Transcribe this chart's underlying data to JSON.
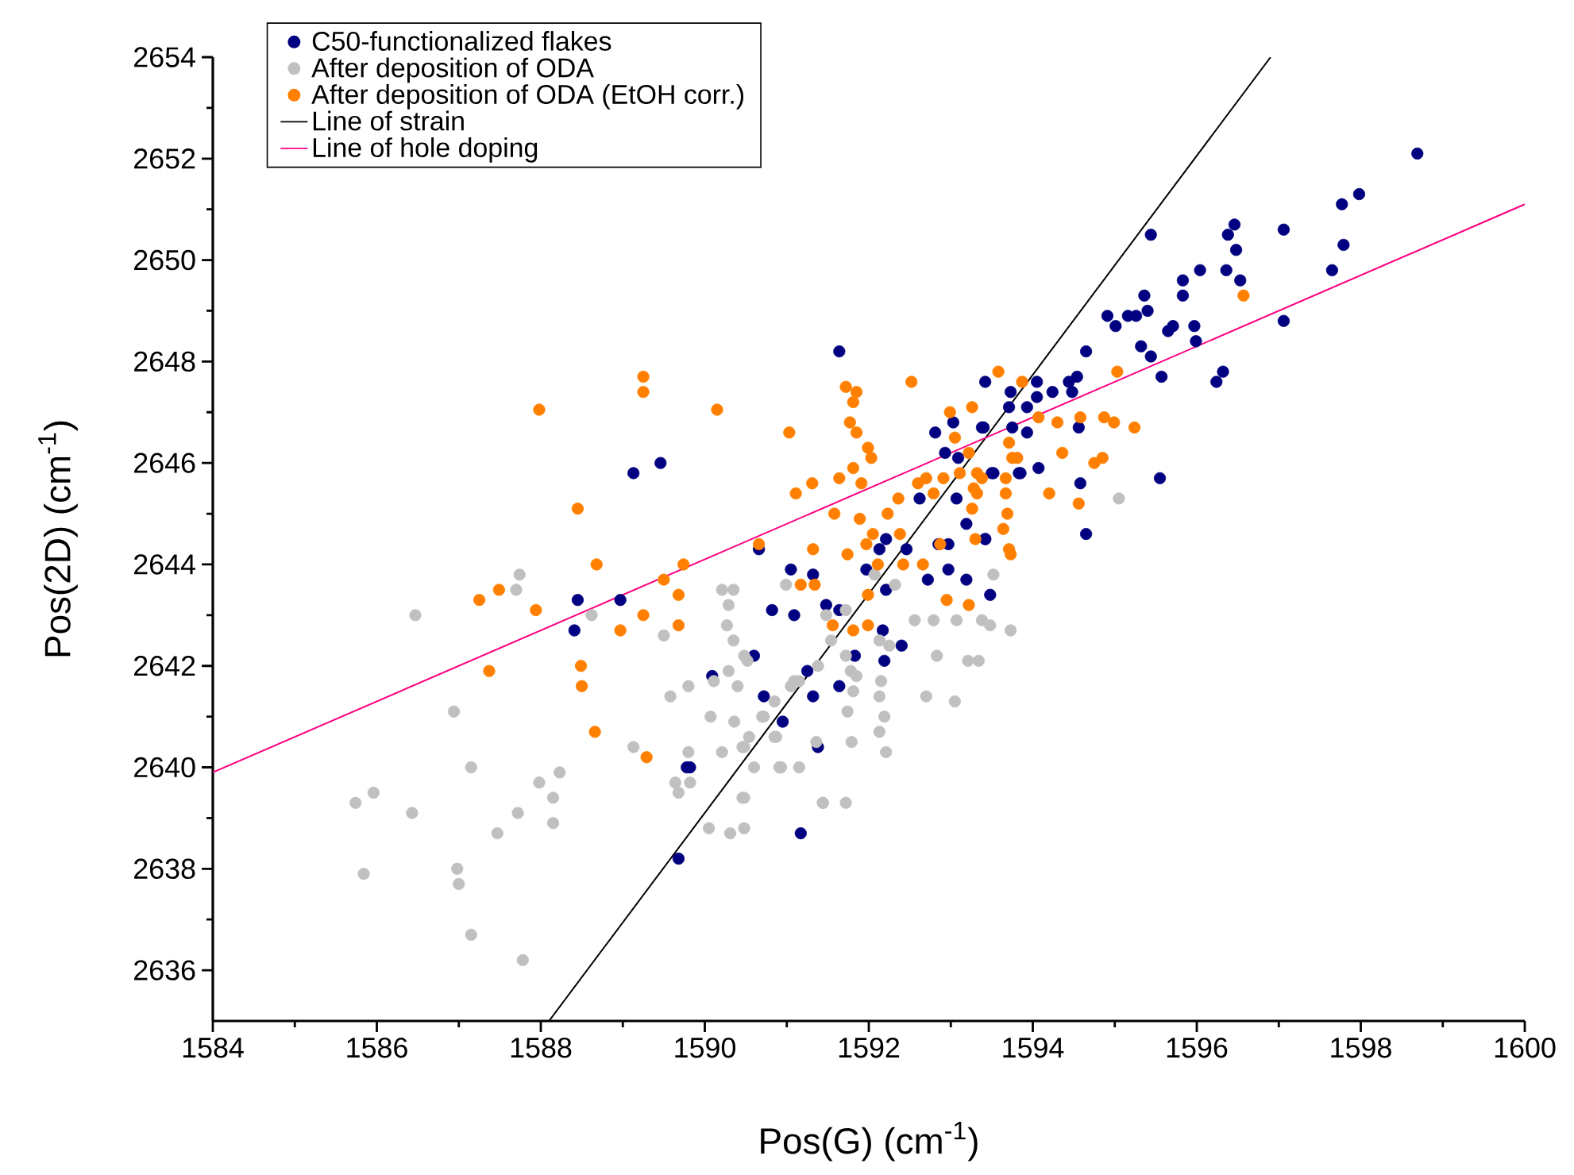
{
  "chart_data": {
    "type": "scatter",
    "xlabel": "Pos(G) (cm$^{-1}$)",
    "ylabel": "Pos(2D) (cm$^{-1}$)",
    "xlim": [
      1584,
      1600
    ],
    "ylim": [
      2635,
      2654
    ],
    "xticks": [
      1584,
      1586,
      1588,
      1590,
      1592,
      1594,
      1596,
      1598,
      1600
    ],
    "yticks": [
      2636,
      2638,
      2640,
      2642,
      2644,
      2646,
      2648,
      2650,
      2652,
      2654
    ],
    "legend": "top left",
    "marker": "circle",
    "series": [
      {
        "name": "C50-functionalized flakes",
        "color": "#000080",
        "x": [
          1598.69,
          1597.98,
          1597.77,
          1597.79,
          1597.65,
          1597.06,
          1597.06,
          1596.46,
          1596.38,
          1596.48,
          1596.36,
          1596.53,
          1596.32,
          1596.24,
          1596.04,
          1595.83,
          1595.83,
          1595.44,
          1595.36,
          1595.4,
          1595.26,
          1595.16,
          1594.91,
          1595.01,
          1595.71,
          1595.65,
          1595.97,
          1595.99,
          1595.32,
          1595.44,
          1595.57,
          1594.65,
          1594.54,
          1594.44,
          1594.48,
          1594.24,
          1594.05,
          1594.05,
          1593.73,
          1593.42,
          1593.93,
          1593.71,
          1594.56,
          1593.93,
          1593.75,
          1593.4,
          1594.07,
          1593.83,
          1593.52,
          1594.58,
          1595.55,
          1594.65,
          1593.42,
          1592.81,
          1593.03,
          1593.38,
          1592.93,
          1593.09,
          1593.5,
          1593.85,
          1592.62,
          1593.07,
          1593.19,
          1593.42,
          1592.21,
          1592.13,
          1592.46,
          1592.85,
          1592.97,
          1591.97,
          1592.97,
          1592.72,
          1593.19,
          1593.48,
          1592.21,
          1591.05,
          1591.32,
          1590.82,
          1591.09,
          1591.48,
          1591.64,
          1592.17,
          1592.4,
          1591.83,
          1592.19,
          1590.6,
          1590.09,
          1591.25,
          1591.64,
          1590.72,
          1591.32,
          1590.95,
          1591.38,
          1589.82,
          1591.64,
          1589.13,
          1589.46,
          1588.45,
          1588.97,
          1588.41,
          1590.66,
          1589.78,
          1589.68,
          1591.17
        ],
        "values": [
          2652.1,
          2651.3,
          2651.1,
          2650.3,
          2649.8,
          2650.6,
          2648.8,
          2650.7,
          2650.5,
          2650.2,
          2649.8,
          2649.6,
          2647.8,
          2647.6,
          2649.8,
          2649.6,
          2649.3,
          2650.5,
          2649.3,
          2649.0,
          2648.9,
          2648.9,
          2648.9,
          2648.7,
          2648.7,
          2648.6,
          2648.7,
          2648.4,
          2648.3,
          2648.1,
          2647.7,
          2648.2,
          2647.7,
          2647.6,
          2647.4,
          2647.4,
          2647.6,
          2647.3,
          2647.4,
          2647.6,
          2647.1,
          2647.1,
          2646.7,
          2646.6,
          2646.7,
          2646.7,
          2645.9,
          2645.8,
          2645.8,
          2645.6,
          2645.7,
          2644.6,
          2644.5,
          2646.6,
          2646.8,
          2646.7,
          2646.2,
          2646.1,
          2645.8,
          2645.8,
          2645.3,
          2645.3,
          2644.8,
          2644.5,
          2644.5,
          2644.3,
          2644.3,
          2644.4,
          2644.4,
          2643.9,
          2643.9,
          2643.7,
          2643.7,
          2643.4,
          2643.5,
          2643.9,
          2643.8,
          2643.1,
          2643.0,
          2643.2,
          2643.1,
          2642.7,
          2642.4,
          2642.2,
          2642.1,
          2642.2,
          2641.8,
          2641.9,
          2641.6,
          2641.4,
          2641.4,
          2640.9,
          2640.4,
          2640.0,
          2648.2,
          2645.8,
          2646.0,
          2643.3,
          2643.3,
          2642.7,
          2644.3,
          2640.0,
          2638.2,
          2638.7
        ]
      },
      {
        "name": "After deposition of ODA",
        "color": "#c0c0c0",
        "x": [
          1586.47,
          1587.74,
          1587.7,
          1588.62,
          1589.5,
          1590.21,
          1590.35,
          1590.29,
          1590.27,
          1590.35,
          1590.48,
          1590.52,
          1590.99,
          1590.29,
          1590.11,
          1590.4,
          1589.8,
          1589.58,
          1590.07,
          1590.36,
          1590.7,
          1590.54,
          1590.85,
          1590.87,
          1591.05,
          1591.15,
          1589.13,
          1589.8,
          1590.21,
          1590.48,
          1590.6,
          1590.91,
          1591.15,
          1589.64,
          1589.68,
          1589.82,
          1590.48,
          1591.44,
          1590.05,
          1590.31,
          1590.48,
          1587.15,
          1588.23,
          1587.98,
          1588.15,
          1588.15,
          1587.72,
          1587.47,
          1586.94,
          1585.96,
          1585.74,
          1586.43,
          1585.84,
          1586.98,
          1587.0,
          1587.15,
          1587.78,
          1591.72,
          1591.54,
          1591.48,
          1592.07,
          1592.32,
          1592.56,
          1592.79,
          1593.07,
          1593.38,
          1593.48,
          1593.73,
          1593.52,
          1595.05,
          1592.13,
          1592.25,
          1592.83,
          1593.21,
          1593.34,
          1591.72,
          1591.38,
          1591.09,
          1591.78,
          1591.85,
          1592.15,
          1592.7,
          1593.05,
          1591.81,
          1592.13,
          1591.74,
          1592.19,
          1590.72,
          1590.85,
          1592.13,
          1592.21,
          1591.79,
          1590.93,
          1590.46,
          1591.44,
          1591.72,
          1591.36,
          1590.46
        ],
        "values": [
          2643.0,
          2643.8,
          2643.5,
          2643.0,
          2642.6,
          2643.5,
          2643.5,
          2643.2,
          2642.8,
          2642.5,
          2642.2,
          2642.1,
          2643.6,
          2641.9,
          2641.7,
          2641.6,
          2641.6,
          2641.4,
          2641.0,
          2640.9,
          2641.0,
          2640.6,
          2641.3,
          2640.6,
          2641.6,
          2641.7,
          2640.4,
          2640.3,
          2640.3,
          2640.4,
          2640.0,
          2640.0,
          2640.0,
          2639.7,
          2639.5,
          2639.7,
          2639.4,
          2639.3,
          2638.8,
          2638.7,
          2638.8,
          2640.0,
          2639.9,
          2639.7,
          2639.4,
          2638.9,
          2639.1,
          2638.7,
          2641.1,
          2639.5,
          2639.3,
          2639.1,
          2637.9,
          2638.0,
          2637.7,
          2636.7,
          2636.2,
          2643.1,
          2642.5,
          2643.0,
          2643.8,
          2643.6,
          2642.9,
          2642.9,
          2642.9,
          2642.9,
          2642.8,
          2642.7,
          2643.8,
          2645.3,
          2642.5,
          2642.4,
          2642.2,
          2642.1,
          2642.1,
          2642.2,
          2642.0,
          2641.7,
          2641.9,
          2641.8,
          2641.7,
          2641.4,
          2641.3,
          2641.5,
          2641.4,
          2641.1,
          2641.0,
          2641.0,
          2640.6,
          2640.7,
          2640.3,
          2640.5,
          2640.0,
          2639.4,
          2639.3,
          2639.3,
          2640.5,
          2640.4
        ]
      },
      {
        "name": "After deposition of ODA (EtOH corr.)",
        "color": "#ff8000",
        "x": [
          1588.45,
          1588.68,
          1587.25,
          1587.49,
          1587.94,
          1587.37,
          1588.49,
          1588.5,
          1588.66,
          1588.97,
          1589.25,
          1589.5,
          1589.74,
          1589.68,
          1589.68,
          1589.29,
          1590.66,
          1591.11,
          1591.31,
          1591.32,
          1591.17,
          1591.34,
          1587.98,
          1589.25,
          1589.25,
          1590.15,
          1591.03,
          1591.72,
          1591.85,
          1591.81,
          1591.77,
          1591.85,
          1591.99,
          1592.03,
          1592.52,
          1591.81,
          1591.64,
          1591.91,
          1591.58,
          1591.89,
          1592.23,
          1592.36,
          1592.6,
          1592.7,
          1592.79,
          1592.91,
          1593.11,
          1592.99,
          1593.26,
          1593.58,
          1593.87,
          1593.05,
          1593.22,
          1593.32,
          1593.38,
          1593.28,
          1593.32,
          1593.26,
          1593.67,
          1593.67,
          1593.69,
          1593.64,
          1593.71,
          1593.73,
          1593.3,
          1593.71,
          1593.75,
          1593.81,
          1592.05,
          1592.38,
          1591.97,
          1592.11,
          1592.42,
          1592.66,
          1592.87,
          1591.74,
          1591.99,
          1592.95,
          1593.22,
          1591.56,
          1591.81,
          1591.99,
          1594.36,
          1594.2,
          1594.56,
          1594.75,
          1594.85,
          1594.3,
          1594.58,
          1594.87,
          1594.99,
          1595.24,
          1595.03,
          1594.07,
          1596.57
        ],
        "values": [
          2645.1,
          2644.0,
          2643.3,
          2643.5,
          2643.1,
          2641.9,
          2642.0,
          2641.6,
          2640.7,
          2642.7,
          2643.0,
          2643.7,
          2644.0,
          2643.4,
          2642.8,
          2640.2,
          2644.4,
          2645.4,
          2645.6,
          2644.3,
          2643.6,
          2643.6,
          2647.05,
          2647.7,
          2647.4,
          2647.05,
          2646.6,
          2647.5,
          2647.4,
          2647.2,
          2646.8,
          2646.6,
          2646.3,
          2646.1,
          2647.6,
          2645.9,
          2645.7,
          2645.6,
          2645.0,
          2644.9,
          2645.0,
          2645.3,
          2645.6,
          2645.7,
          2645.4,
          2645.7,
          2645.8,
          2647.0,
          2647.1,
          2647.8,
          2647.6,
          2646.5,
          2646.2,
          2645.8,
          2645.7,
          2645.5,
          2645.4,
          2645.1,
          2645.7,
          2645.4,
          2645.0,
          2644.7,
          2644.3,
          2644.2,
          2644.5,
          2646.4,
          2646.1,
          2646.1,
          2644.6,
          2644.6,
          2644.4,
          2644.0,
          2644.0,
          2644.0,
          2644.4,
          2644.2,
          2643.4,
          2643.3,
          2643.2,
          2642.8,
          2642.7,
          2642.8,
          2646.2,
          2645.4,
          2645.2,
          2646.0,
          2646.1,
          2646.8,
          2646.9,
          2646.9,
          2646.8,
          2646.7,
          2647.8,
          2646.9,
          2649.3
        ]
      },
      {
        "name": "Line of strain",
        "type": "line",
        "marker": "none",
        "line_style": "solid",
        "color": "#000000",
        "x": [
          1588.1,
          1596.9
        ],
        "values": [
          2635,
          2654
        ]
      },
      {
        "name": "Line of hole doping",
        "type": "line",
        "marker": "none",
        "line_style": "solid",
        "color": "#ff0080",
        "x": [
          1584,
          1600
        ],
        "values": [
          2639.9,
          2651.1
        ]
      }
    ]
  }
}
